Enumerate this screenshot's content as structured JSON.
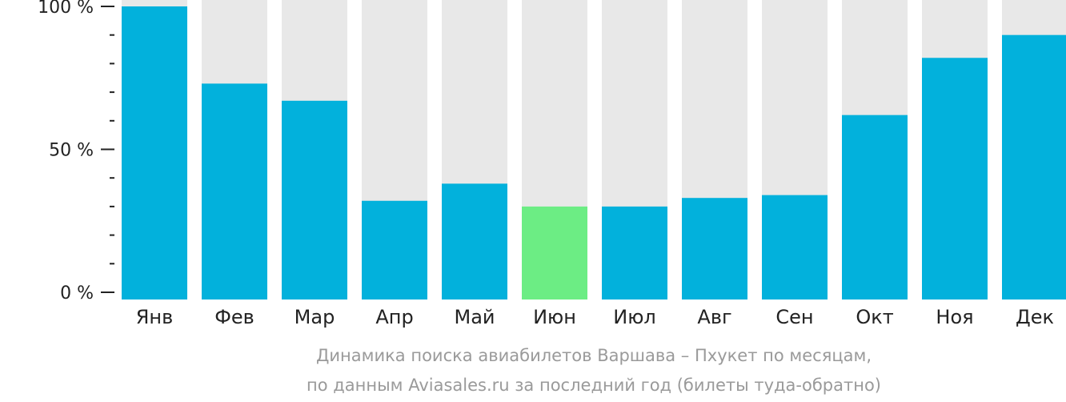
{
  "chart_data": {
    "type": "bar",
    "categories": [
      "Янв",
      "Фев",
      "Мар",
      "Апр",
      "Май",
      "Июн",
      "Июл",
      "Авг",
      "Сен",
      "Окт",
      "Ноя",
      "Дек"
    ],
    "values": [
      100,
      73,
      67,
      32,
      38,
      30,
      30,
      33,
      34,
      62,
      82,
      90
    ],
    "highlight_index": 5,
    "ylim": [
      0,
      100
    ],
    "y_ticks": [
      {
        "value": 0,
        "label": "0 %"
      },
      {
        "value": 50,
        "label": "50 %"
      },
      {
        "value": 100,
        "label": "100 %"
      }
    ],
    "minor_tick_step": 10,
    "caption_line1": "Динамика поиска авиабилетов Варшава – Пхукет по месяцам,",
    "caption_line2": "по данным Aviasales.ru за последний год (билеты туда-обратно)",
    "colors": {
      "bar": "#02b1dc",
      "highlight": "#6ced84",
      "background_bar": "#e8e8e8",
      "axis": "#222222",
      "caption": "#9a9a9a"
    }
  }
}
